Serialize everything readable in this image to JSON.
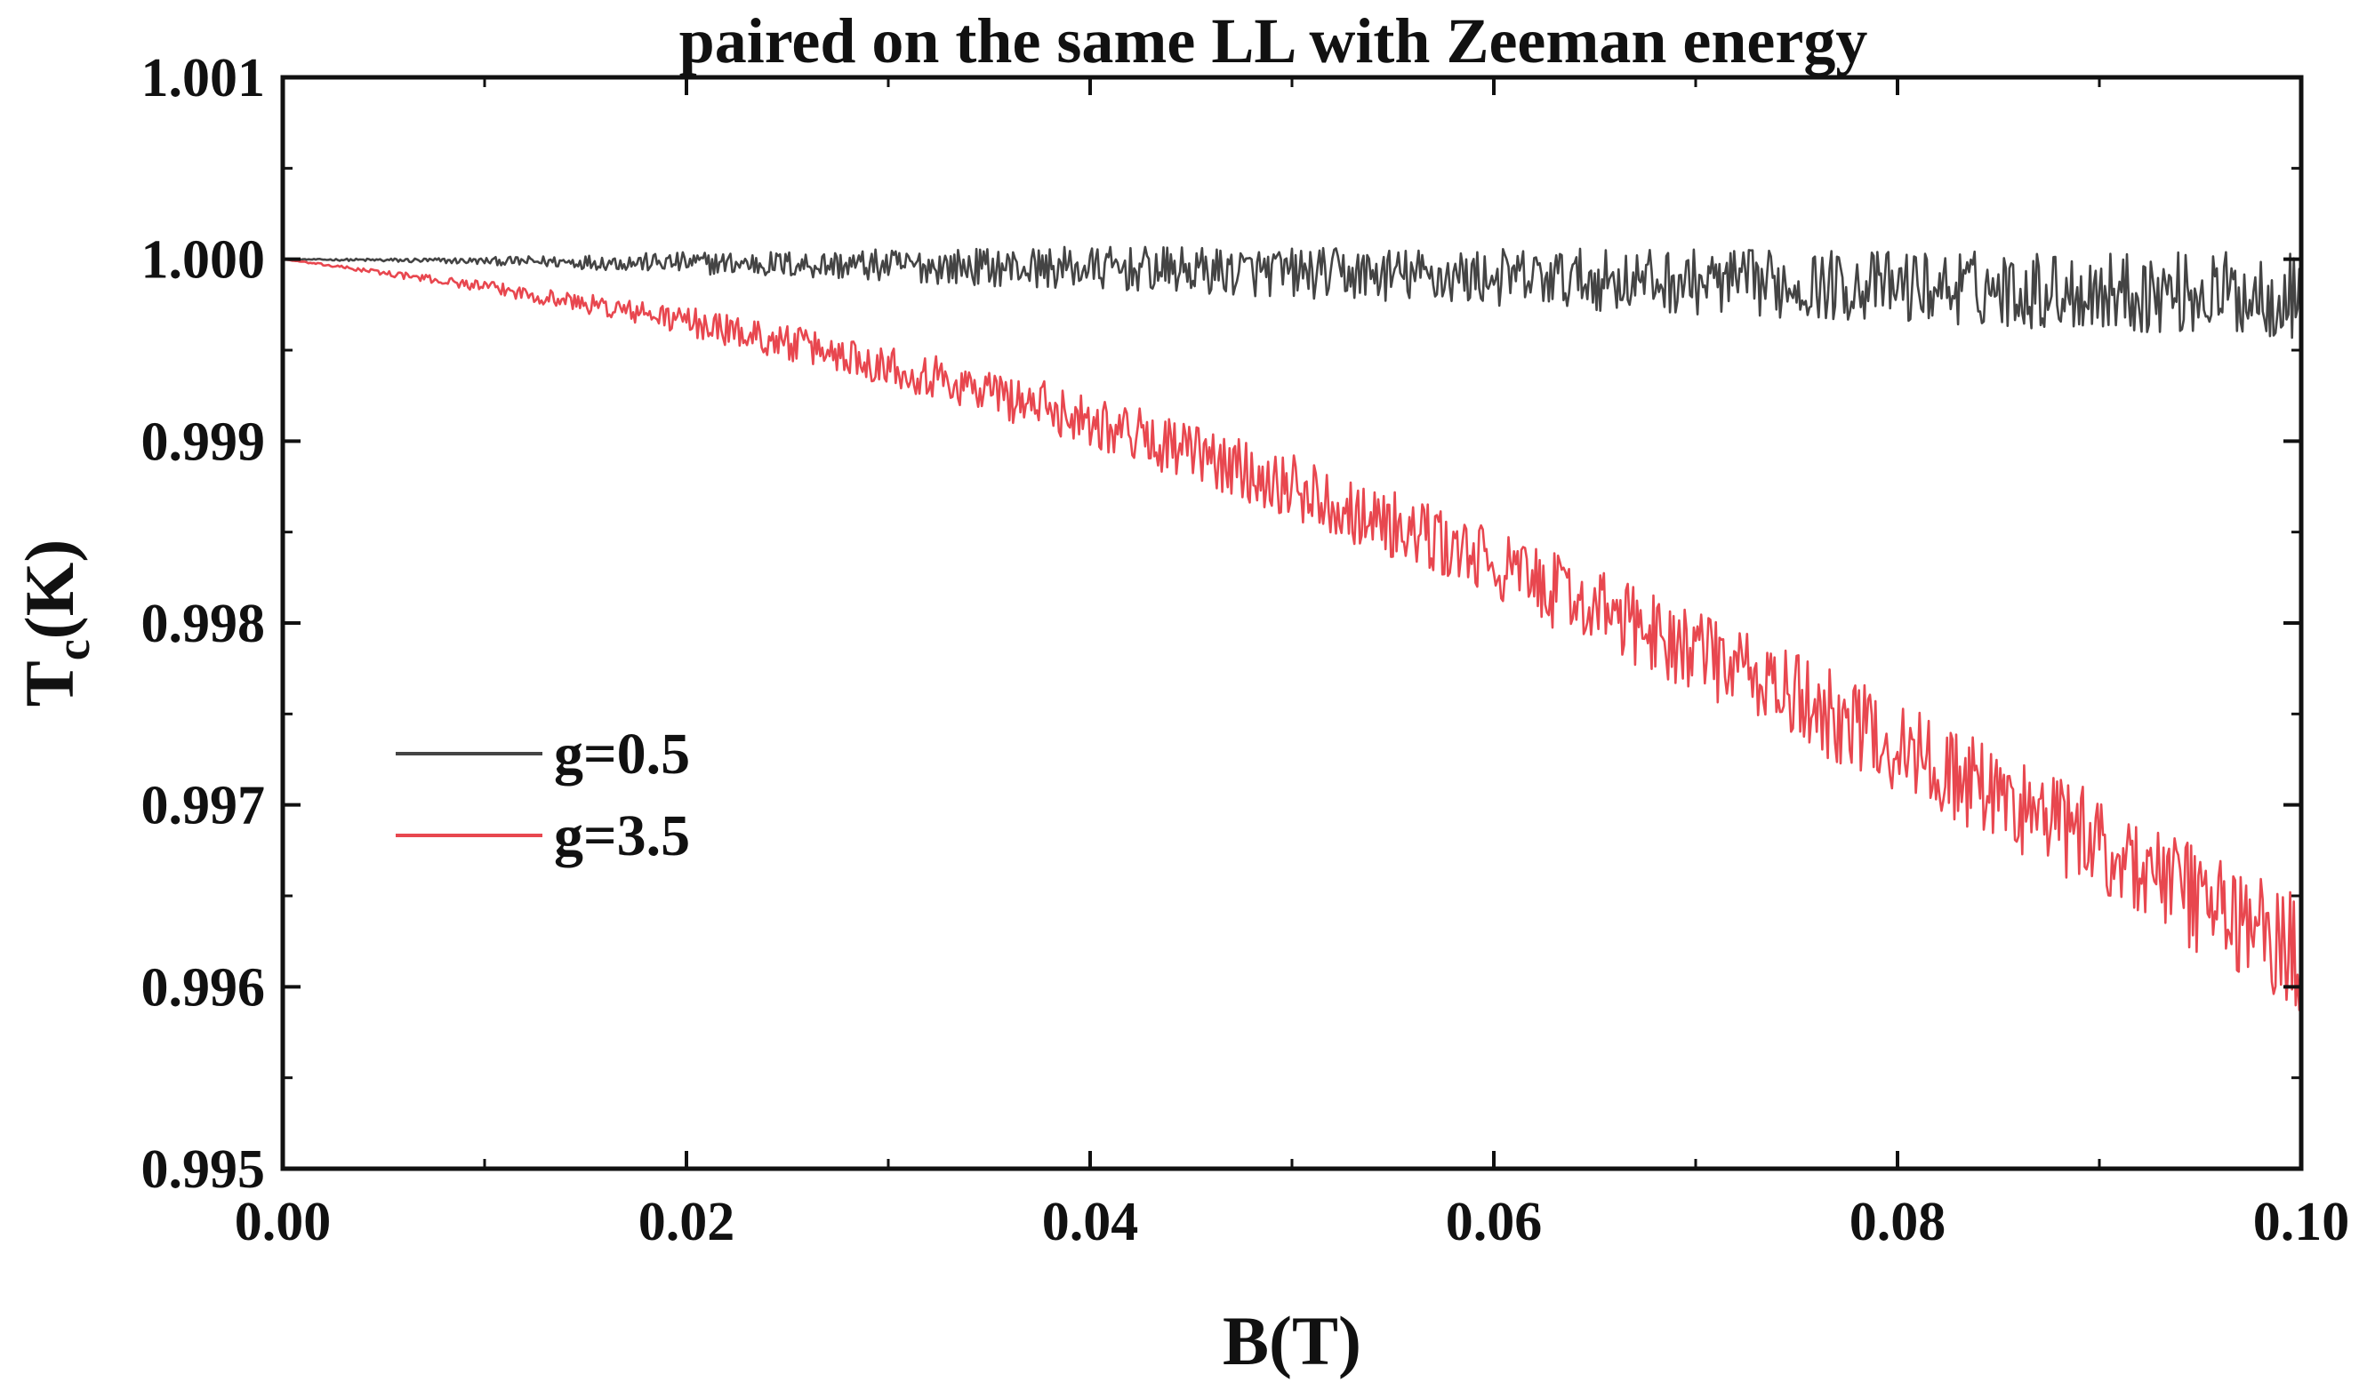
{
  "chart_data": {
    "type": "line",
    "title": "paired on the same LL with Zeeman energy",
    "xlabel": "B(T)",
    "ylabel_main": "T",
    "ylabel_sub": "c",
    "ylabel_unit": "(K)",
    "xlim": [
      0.0,
      0.1
    ],
    "ylim": [
      0.995,
      1.001
    ],
    "xticks": [
      0.0,
      0.02,
      0.04,
      0.06,
      0.08,
      0.1
    ],
    "xtick_labels": [
      "0.00",
      "0.02",
      "0.04",
      "0.06",
      "0.08",
      "0.10"
    ],
    "yticks": [
      0.995,
      0.996,
      0.997,
      0.998,
      0.999,
      1.0,
      1.001
    ],
    "ytick_labels": [
      "0.995",
      "0.996",
      "0.997",
      "0.998",
      "0.999",
      "1.000",
      "1.001"
    ],
    "grid": false,
    "legend_position": "middle-left",
    "series": [
      {
        "name": "g=0.5",
        "color": "#444444",
        "trend": [
          [
            0.0,
            1.0
          ],
          [
            0.02,
            0.99998
          ],
          [
            0.04,
            0.99995
          ],
          [
            0.06,
            0.9999
          ],
          [
            0.08,
            0.99985
          ],
          [
            0.1,
            0.9998
          ]
        ],
        "noise_envelope": [
          [
            0.0,
            0.0
          ],
          [
            0.01,
            2e-05
          ],
          [
            0.02,
            6e-05
          ],
          [
            0.04,
            0.00012
          ],
          [
            0.06,
            0.00016
          ],
          [
            0.08,
            0.0002
          ],
          [
            0.1,
            0.00024
          ]
        ]
      },
      {
        "name": "g=3.5",
        "color": "#e8474f",
        "trend": [
          [
            0.0,
            1.0
          ],
          [
            0.01,
            0.99985
          ],
          [
            0.02,
            0.99966
          ],
          [
            0.03,
            0.99942
          ],
          [
            0.04,
            0.99912
          ],
          [
            0.05,
            0.99875
          ],
          [
            0.06,
            0.99832
          ],
          [
            0.07,
            0.99785
          ],
          [
            0.08,
            0.99732
          ],
          [
            0.09,
            0.99678
          ],
          [
            0.1,
            0.99618
          ]
        ],
        "noise_envelope": [
          [
            0.0,
            0.0
          ],
          [
            0.01,
            3e-05
          ],
          [
            0.02,
            8e-05
          ],
          [
            0.04,
            0.00015
          ],
          [
            0.06,
            0.0002
          ],
          [
            0.08,
            0.00026
          ],
          [
            0.1,
            0.00032
          ]
        ]
      }
    ]
  }
}
